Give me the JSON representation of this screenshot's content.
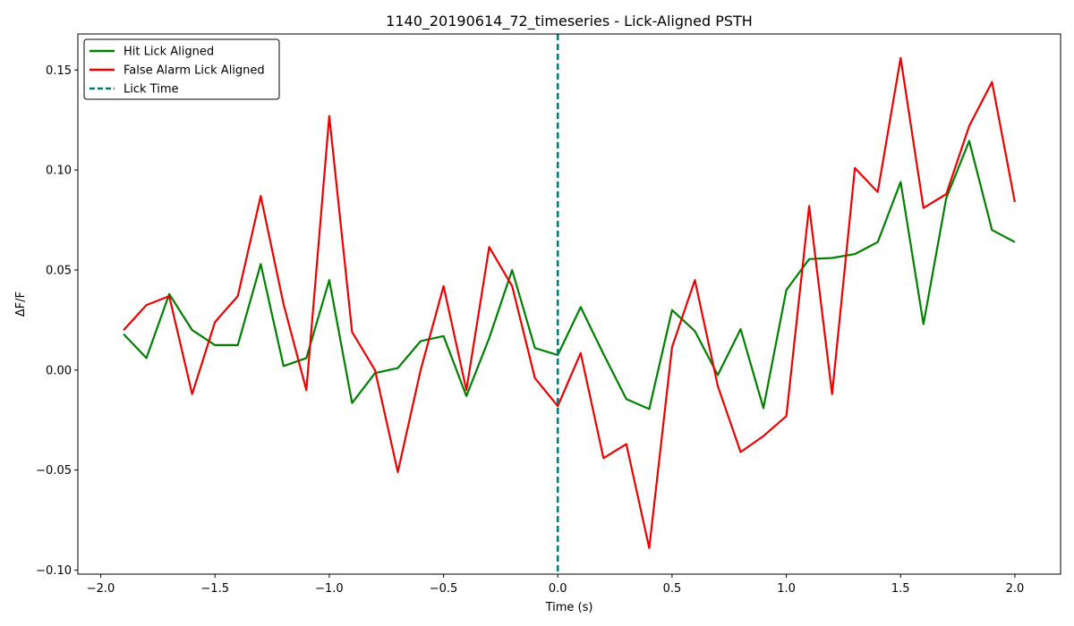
{
  "chart_data": {
    "type": "line",
    "title": "1140_20190614_72_timeseries - Lick-Aligned PSTH",
    "xlabel": "Time (s)",
    "ylabel": "ΔF/F",
    "xlim": [
      -2.1,
      2.2
    ],
    "ylim": [
      -0.102,
      0.168
    ],
    "xticks": [
      -2.0,
      -1.5,
      -1.0,
      -0.5,
      0.0,
      0.5,
      1.0,
      1.5,
      2.0
    ],
    "xtick_labels": [
      "−2.0",
      "−1.5",
      "−1.0",
      "−0.5",
      "0.0",
      "0.5",
      "1.0",
      "1.5",
      "2.0"
    ],
    "yticks": [
      -0.1,
      -0.05,
      0.0,
      0.05,
      0.1,
      0.15
    ],
    "ytick_labels": [
      "−0.10",
      "−0.05",
      "0.00",
      "0.05",
      "0.10",
      "0.15"
    ],
    "grid": false,
    "legend_position": "top-left",
    "x": [
      -1.9,
      -1.8,
      -1.7,
      -1.6,
      -1.5,
      -1.4,
      -1.3,
      -1.2,
      -1.1,
      -1.0,
      -0.9,
      -0.8,
      -0.7,
      -0.6,
      -0.5,
      -0.4,
      -0.3,
      -0.2,
      -0.1,
      0.0,
      0.1,
      0.2,
      0.3,
      0.4,
      0.5,
      0.6,
      0.7,
      0.8,
      0.9,
      1.0,
      1.1,
      1.2,
      1.3,
      1.4,
      1.5,
      1.6,
      1.7,
      1.8,
      1.9,
      2.0
    ],
    "series": [
      {
        "name": "Hit Lick Aligned",
        "color": "#008000",
        "values": [
          0.018,
          0.006,
          0.038,
          0.02,
          0.0125,
          0.0125,
          0.053,
          0.002,
          0.006,
          0.045,
          -0.0165,
          -0.0015,
          0.001,
          0.0145,
          0.017,
          -0.013,
          0.016,
          0.05,
          0.011,
          0.0075,
          0.0315,
          0.008,
          -0.0145,
          -0.0195,
          0.03,
          0.0195,
          -0.0025,
          0.0205,
          -0.019,
          0.04,
          0.0555,
          0.056,
          0.058,
          0.064,
          0.094,
          0.023,
          0.086,
          0.1145,
          0.07,
          0.064
        ]
      },
      {
        "name": "False Alarm Lick Aligned",
        "color": "#ee0000",
        "values": [
          0.02,
          0.0325,
          0.037,
          -0.012,
          0.024,
          0.037,
          0.087,
          0.033,
          -0.01,
          0.127,
          0.019,
          0.0,
          -0.051,
          0.0,
          0.042,
          -0.01,
          0.0615,
          0.042,
          -0.004,
          -0.018,
          0.0085,
          -0.044,
          -0.037,
          -0.089,
          0.0115,
          0.045,
          -0.008,
          -0.041,
          -0.033,
          -0.023,
          0.082,
          -0.012,
          0.101,
          0.089,
          0.156,
          0.081,
          0.088,
          0.122,
          0.144,
          0.084
        ]
      }
    ],
    "vline": {
      "x": 0.0,
      "name": "Lick Time",
      "color": "#007b7b",
      "style": "dashed"
    }
  }
}
